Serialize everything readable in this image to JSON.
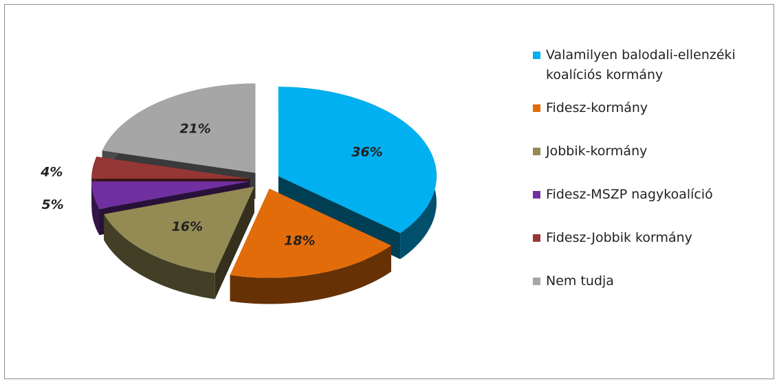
{
  "chart_data": {
    "type": "pie",
    "categories": [
      "Valamilyen balodali-ellenzéki koalíciós kormány",
      "Fidesz-kormány",
      "Jobbik-kormány",
      "Fidesz-MSZP nagykoalíció",
      "Fidesz-Jobbik kormány",
      "Nem tudja"
    ],
    "values": [
      36,
      18,
      16,
      5,
      4,
      21
    ],
    "value_labels": [
      "36%",
      "18%",
      "16%",
      "5%",
      "4%",
      "21%"
    ],
    "colors": [
      "#00b0f0",
      "#e36c0a",
      "#948a54",
      "#7030a0",
      "#953735",
      "#a6a6a6"
    ],
    "legend": "right"
  }
}
